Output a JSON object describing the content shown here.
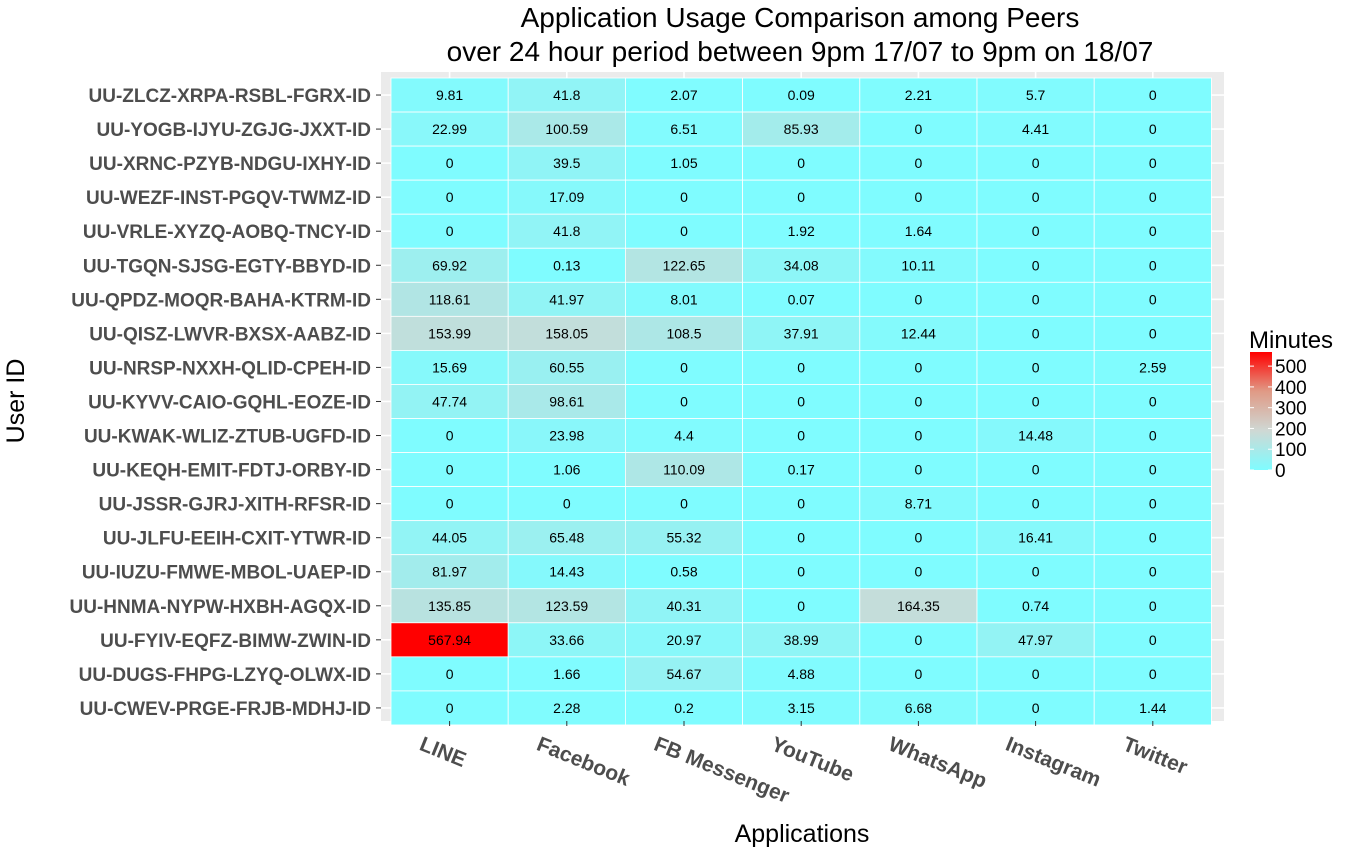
{
  "chart_data": {
    "type": "heatmap",
    "title_line1": "Application Usage Comparison among Peers",
    "title_line2": "over 24 hour period between 9pm 17/07 to 9pm on 18/07",
    "xlabel": "Applications",
    "ylabel": "User ID",
    "x_categories": [
      "LINE",
      "Facebook",
      "FB Messenger",
      "YouTube",
      "WhatsApp",
      "Instagram",
      "Twitter"
    ],
    "y_categories": [
      "UU-ZLCZ-XRPA-RSBL-FGRX-ID",
      "UU-YOGB-IJYU-ZGJG-JXXT-ID",
      "UU-XRNC-PZYB-NDGU-IXHY-ID",
      "UU-WEZF-INST-PGQV-TWMZ-ID",
      "UU-VRLE-XYZQ-AOBQ-TNCY-ID",
      "UU-TGQN-SJSG-EGTY-BBYD-ID",
      "UU-QPDZ-MOQR-BAHA-KTRM-ID",
      "UU-QISZ-LWVR-BXSX-AABZ-ID",
      "UU-NRSP-NXXH-QLID-CPEH-ID",
      "UU-KYVV-CAIO-GQHL-EOZE-ID",
      "UU-KWAK-WLIZ-ZTUB-UGFD-ID",
      "UU-KEQH-EMIT-FDTJ-ORBY-ID",
      "UU-JSSR-GJRJ-XITH-RFSR-ID",
      "UU-JLFU-EEIH-CXIT-YTWR-ID",
      "UU-IUZU-FMWE-MBOL-UAEP-ID",
      "UU-HNMA-NYPW-HXBH-AGQX-ID",
      "UU-FYIV-EQFZ-BIMW-ZWIN-ID",
      "UU-DUGS-FHPG-LZYQ-OLWX-ID",
      "UU-CWEV-PRGE-FRJB-MDHJ-ID"
    ],
    "values": [
      [
        "9.81",
        "41.8",
        "2.07",
        "0.09",
        "2.21",
        "5.7",
        "0"
      ],
      [
        "22.99",
        "100.59",
        "6.51",
        "85.93",
        "0",
        "4.41",
        "0"
      ],
      [
        "0",
        "39.5",
        "1.05",
        "0",
        "0",
        "0",
        "0"
      ],
      [
        "0",
        "17.09",
        "0",
        "0",
        "0",
        "0",
        "0"
      ],
      [
        "0",
        "41.8",
        "0",
        "1.92",
        "1.64",
        "0",
        "0"
      ],
      [
        "69.92",
        "0.13",
        "122.65",
        "34.08",
        "10.11",
        "0",
        "0"
      ],
      [
        "118.61",
        "41.97",
        "8.01",
        "0.07",
        "0",
        "0",
        "0"
      ],
      [
        "153.99",
        "158.05",
        "108.5",
        "37.91",
        "12.44",
        "0",
        "0"
      ],
      [
        "15.69",
        "60.55",
        "0",
        "0",
        "0",
        "0",
        "2.59"
      ],
      [
        "47.74",
        "98.61",
        "0",
        "0",
        "0",
        "0",
        "0"
      ],
      [
        "0",
        "23.98",
        "4.4",
        "0",
        "0",
        "14.48",
        "0"
      ],
      [
        "0",
        "1.06",
        "110.09",
        "0.17",
        "0",
        "0",
        "0"
      ],
      [
        "0",
        "0",
        "0",
        "0",
        "8.71",
        "0",
        "0"
      ],
      [
        "44.05",
        "65.48",
        "55.32",
        "0",
        "0",
        "16.41",
        "0"
      ],
      [
        "81.97",
        "14.43",
        "0.58",
        "0",
        "0",
        "0",
        "0"
      ],
      [
        "135.85",
        "123.59",
        "40.31",
        "0",
        "164.35",
        "0.74",
        "0"
      ],
      [
        "567.94",
        "33.66",
        "20.97",
        "38.99",
        "0",
        "47.97",
        "0"
      ],
      [
        "0",
        "1.66",
        "54.67",
        "4.88",
        "0",
        "0",
        "0"
      ],
      [
        "0",
        "2.28",
        "0.2",
        "3.15",
        "6.68",
        "0",
        "1.44"
      ]
    ],
    "legend": {
      "title": "Minutes",
      "ticks": [
        {
          "label": "500",
          "value": 500
        },
        {
          "label": "400",
          "value": 400
        },
        {
          "label": "300",
          "value": 300
        },
        {
          "label": "200",
          "value": 200
        },
        {
          "label": "100",
          "value": 100
        },
        {
          "label": "0",
          "value": 0
        }
      ],
      "range": [
        0,
        568
      ],
      "color_scale": [
        "#7ffcff",
        "#cfd8d4",
        "#e09a86",
        "#ff0000"
      ]
    },
    "colors": {
      "panel_background": "#ebebeb",
      "grid": "#ffffff",
      "low": "#7ffcff",
      "mid": "#cfd8d4",
      "high": "#ff0000"
    },
    "grid": true,
    "legend_position": "right"
  }
}
